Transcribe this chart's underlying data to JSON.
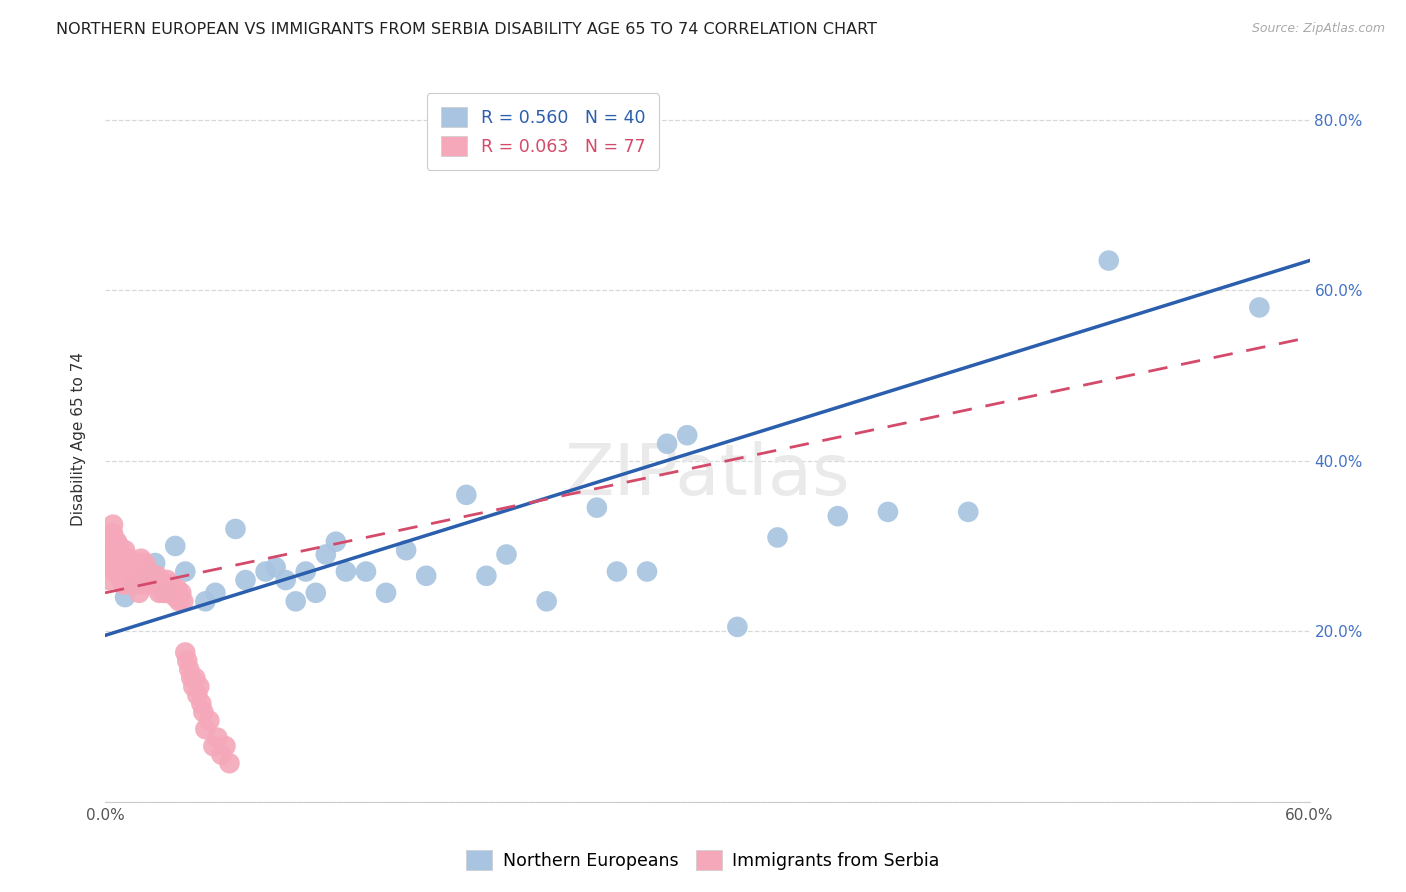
{
  "title": "NORTHERN EUROPEAN VS IMMIGRANTS FROM SERBIA DISABILITY AGE 65 TO 74 CORRELATION CHART",
  "source": "Source: ZipAtlas.com",
  "ylabel": "Disability Age 65 to 74",
  "xlim": [
    0,
    0.6
  ],
  "ylim": [
    0,
    0.85
  ],
  "xticks": [
    0.0,
    0.075,
    0.15,
    0.225,
    0.3,
    0.375,
    0.45,
    0.525,
    0.6
  ],
  "xticklabels_show": {
    "0.0": "0.0%",
    "0.60": "60.0%"
  },
  "yticks": [
    0.0,
    0.2,
    0.4,
    0.6,
    0.8
  ],
  "yticklabels_right": [
    "",
    "20.0%",
    "40.0%",
    "60.0%",
    "80.0%"
  ],
  "blue_R": 0.56,
  "blue_N": 40,
  "pink_R": 0.063,
  "pink_N": 77,
  "blue_color": "#a8c4e0",
  "blue_line_color": "#2b5fad",
  "pink_color": "#f4a8ba",
  "pink_line_color": "#d44a6a",
  "legend_label_blue": "Northern Europeans",
  "legend_label_pink": "Immigrants from Serbia",
  "blue_line_x0": 0.0,
  "blue_line_y0": 0.195,
  "blue_line_x1": 0.6,
  "blue_line_y1": 0.635,
  "pink_line_x0": 0.0,
  "pink_line_y0": 0.245,
  "pink_line_x1": 0.6,
  "pink_line_y1": 0.545,
  "blue_points_x": [
    0.01,
    0.015,
    0.02,
    0.025,
    0.03,
    0.035,
    0.04,
    0.05,
    0.055,
    0.065,
    0.07,
    0.08,
    0.085,
    0.09,
    0.095,
    0.1,
    0.105,
    0.11,
    0.115,
    0.12,
    0.13,
    0.14,
    0.15,
    0.16,
    0.18,
    0.19,
    0.2,
    0.22,
    0.245,
    0.255,
    0.27,
    0.28,
    0.29,
    0.315,
    0.335,
    0.365,
    0.39,
    0.43,
    0.5,
    0.575
  ],
  "blue_points_y": [
    0.24,
    0.255,
    0.265,
    0.28,
    0.245,
    0.3,
    0.27,
    0.235,
    0.245,
    0.32,
    0.26,
    0.27,
    0.275,
    0.26,
    0.235,
    0.27,
    0.245,
    0.29,
    0.305,
    0.27,
    0.27,
    0.245,
    0.295,
    0.265,
    0.36,
    0.265,
    0.29,
    0.235,
    0.345,
    0.27,
    0.27,
    0.42,
    0.43,
    0.205,
    0.31,
    0.335,
    0.34,
    0.34,
    0.635,
    0.58
  ],
  "pink_points_x": [
    0.002,
    0.002,
    0.002,
    0.003,
    0.003,
    0.003,
    0.004,
    0.004,
    0.005,
    0.005,
    0.005,
    0.006,
    0.006,
    0.006,
    0.007,
    0.007,
    0.008,
    0.008,
    0.009,
    0.009,
    0.01,
    0.01,
    0.01,
    0.01,
    0.011,
    0.011,
    0.012,
    0.012,
    0.013,
    0.014,
    0.015,
    0.015,
    0.016,
    0.016,
    0.017,
    0.018,
    0.018,
    0.019,
    0.02,
    0.02,
    0.021,
    0.022,
    0.023,
    0.024,
    0.025,
    0.026,
    0.027,
    0.028,
    0.029,
    0.03,
    0.031,
    0.031,
    0.032,
    0.033,
    0.034,
    0.035,
    0.036,
    0.037,
    0.038,
    0.039,
    0.04,
    0.041,
    0.042,
    0.043,
    0.044,
    0.045,
    0.046,
    0.047,
    0.048,
    0.049,
    0.05,
    0.052,
    0.054,
    0.056,
    0.058,
    0.06,
    0.062
  ],
  "pink_points_y": [
    0.26,
    0.275,
    0.285,
    0.285,
    0.295,
    0.305,
    0.315,
    0.325,
    0.27,
    0.28,
    0.295,
    0.275,
    0.285,
    0.305,
    0.265,
    0.3,
    0.265,
    0.285,
    0.255,
    0.27,
    0.255,
    0.265,
    0.28,
    0.295,
    0.265,
    0.285,
    0.265,
    0.285,
    0.255,
    0.265,
    0.255,
    0.275,
    0.26,
    0.28,
    0.245,
    0.265,
    0.285,
    0.255,
    0.265,
    0.28,
    0.255,
    0.27,
    0.255,
    0.265,
    0.255,
    0.265,
    0.245,
    0.255,
    0.245,
    0.255,
    0.245,
    0.26,
    0.245,
    0.255,
    0.245,
    0.24,
    0.25,
    0.235,
    0.245,
    0.235,
    0.175,
    0.165,
    0.155,
    0.145,
    0.135,
    0.145,
    0.125,
    0.135,
    0.115,
    0.105,
    0.085,
    0.095,
    0.065,
    0.075,
    0.055,
    0.065,
    0.045
  ],
  "background_color": "#ffffff",
  "grid_color": "#d8d8d8",
  "title_fontsize": 11.5,
  "axis_label_fontsize": 11,
  "tick_fontsize": 11,
  "legend_fontsize": 12.5
}
